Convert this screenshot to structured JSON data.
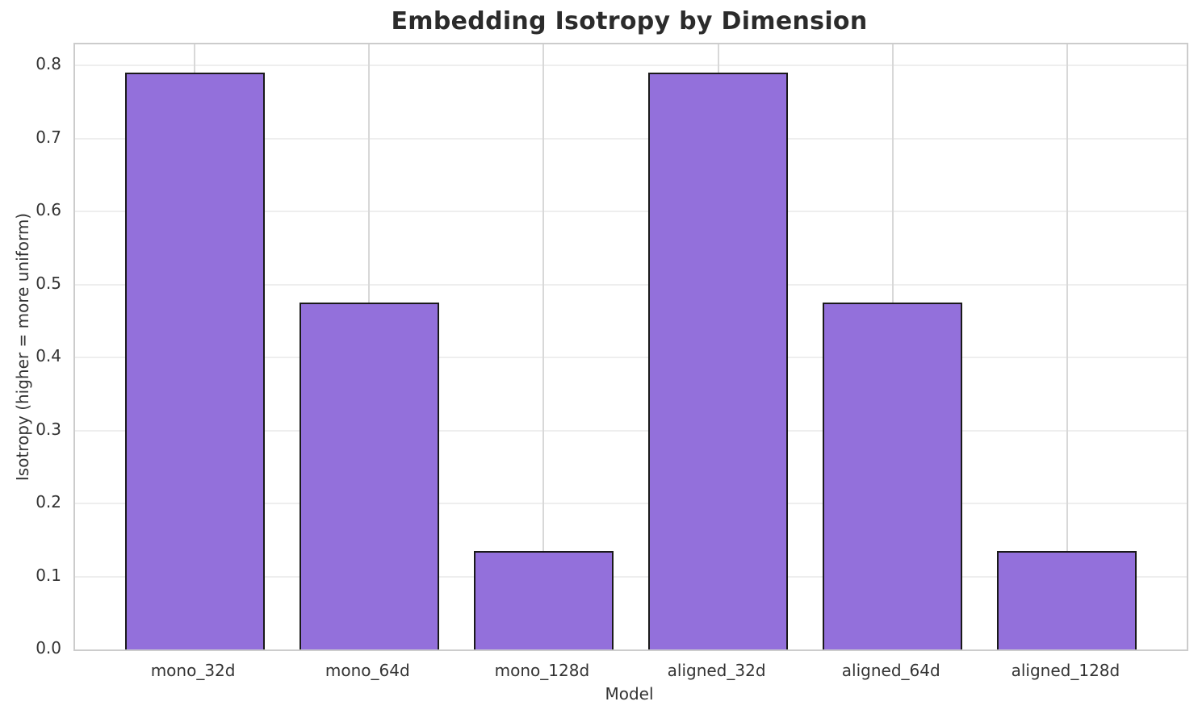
{
  "chart_data": {
    "type": "bar",
    "title": "Embedding Isotropy by Dimension",
    "xlabel": "Model",
    "ylabel": "Isotropy (higher = more uniform)",
    "categories": [
      "mono_32d",
      "mono_64d",
      "mono_128d",
      "aligned_32d",
      "aligned_64d",
      "aligned_128d"
    ],
    "values": [
      0.79,
      0.475,
      0.135,
      0.79,
      0.475,
      0.135
    ],
    "yticks": [
      0.0,
      0.1,
      0.2,
      0.3,
      0.4,
      0.5,
      0.6,
      0.7,
      0.8
    ],
    "ylim": [
      0,
      0.829
    ],
    "bar_width_fraction": 0.8,
    "grid": "on",
    "legend": "none",
    "colors": {
      "background": "#ffffff",
      "bar_fill": "#9370DB",
      "bar_edge": "#1a1a1a",
      "grid_horizontal": "#eeeeee",
      "grid_vertical": "#d8d8d8",
      "spine": "#cccccc",
      "title_text": "#2b2b2b",
      "tick_text": "#333333"
    }
  }
}
